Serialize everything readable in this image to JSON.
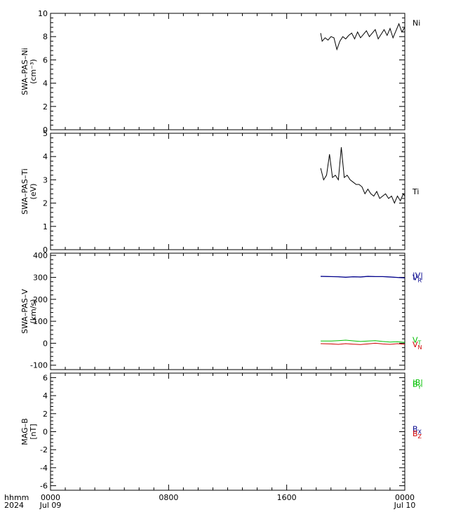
{
  "colors": {
    "black": "#000000",
    "blue": "#00008b",
    "green": "#00c000",
    "red": "#d00000"
  },
  "time_axis": {
    "format_label": "hhmm",
    "year_label": "2024",
    "ticks": [
      {
        "hhmm": "0000",
        "date": "Jul 09"
      },
      {
        "hhmm": "0800",
        "date": ""
      },
      {
        "hhmm": "1600",
        "date": ""
      },
      {
        "hhmm": "0000",
        "date": "Jul 10"
      }
    ]
  },
  "chart_data": [
    {
      "type": "line",
      "ylabel_line1": "SWA–PAS–Ni",
      "ylabel_line2": "(cm⁻³)",
      "ylim": [
        0,
        10
      ],
      "y_ticks": [
        0,
        2,
        4,
        6,
        8,
        10
      ],
      "x_hours_range": [
        0,
        24
      ],
      "series": [
        {
          "name": "Ni",
          "color": "#000000",
          "label_y": 9.2,
          "x": [
            18.3,
            18.4,
            18.6,
            18.8,
            19.0,
            19.2,
            19.4,
            19.6,
            19.8,
            20.0,
            20.2,
            20.4,
            20.6,
            20.8,
            21.0,
            21.2,
            21.4,
            21.6,
            21.8,
            22.0,
            22.2,
            22.4,
            22.6,
            22.8,
            23.0,
            23.2,
            23.4,
            23.6,
            23.8,
            24.0
          ],
          "values": [
            8.3,
            7.6,
            7.9,
            7.7,
            8.0,
            7.9,
            6.9,
            7.6,
            8.0,
            7.8,
            8.1,
            8.3,
            7.8,
            8.4,
            7.9,
            8.2,
            8.5,
            8.0,
            8.3,
            8.6,
            7.8,
            8.2,
            8.6,
            8.1,
            8.7,
            7.9,
            8.5,
            9.1,
            8.4,
            8.8
          ]
        }
      ]
    },
    {
      "type": "line",
      "ylabel_line1": "SWA–PAS–Ti",
      "ylabel_line2": "(eV)",
      "ylim": [
        0,
        5
      ],
      "y_ticks": [
        0,
        1,
        2,
        3,
        4,
        5
      ],
      "x_hours_range": [
        0,
        24
      ],
      "series": [
        {
          "name": "Ti",
          "color": "#000000",
          "label_y": 2.5,
          "x": [
            18.3,
            18.5,
            18.7,
            18.9,
            19.1,
            19.3,
            19.5,
            19.7,
            19.9,
            20.1,
            20.3,
            20.5,
            20.7,
            20.9,
            21.1,
            21.3,
            21.5,
            21.7,
            21.9,
            22.1,
            22.3,
            22.5,
            22.7,
            22.9,
            23.1,
            23.3,
            23.5,
            23.7,
            23.9,
            24.0
          ],
          "values": [
            3.5,
            3.0,
            3.2,
            4.1,
            3.1,
            3.2,
            3.0,
            4.4,
            3.1,
            3.2,
            3.0,
            2.9,
            2.8,
            2.8,
            2.7,
            2.4,
            2.6,
            2.4,
            2.3,
            2.5,
            2.2,
            2.3,
            2.4,
            2.2,
            2.3,
            2.0,
            2.3,
            2.1,
            2.4,
            2.3
          ]
        }
      ]
    },
    {
      "type": "line",
      "ylabel_line1": "SWA–PAS–V",
      "ylabel_line2": "(km/s)",
      "ylim": [
        -120,
        410
      ],
      "y_ticks": [
        -100,
        0,
        100,
        200,
        300,
        400
      ],
      "x_hours_range": [
        0,
        24
      ],
      "series": [
        {
          "name": "|V|",
          "color": "#00008b",
          "label_y": 310,
          "x": [
            18.3,
            19.0,
            19.5,
            20.0,
            20.5,
            21.0,
            21.5,
            22.0,
            22.5,
            23.0,
            23.5,
            24.0
          ],
          "values": [
            305,
            304,
            303,
            301,
            303,
            302,
            305,
            304,
            304,
            302,
            300,
            298
          ]
        },
        {
          "name": "V_R",
          "color": "#00008b",
          "label_y": 300,
          "x": [
            18.3,
            19.0,
            19.5,
            20.0,
            20.5,
            21.0,
            21.5,
            22.0,
            22.5,
            23.0,
            23.5,
            24.0
          ],
          "values": [
            304,
            303,
            302,
            300,
            302,
            301,
            304,
            303,
            303,
            301,
            299,
            297
          ]
        },
        {
          "name": "V_T",
          "color": "#00c000",
          "label_y": 15,
          "x": [
            18.3,
            19.0,
            19.5,
            20.0,
            20.5,
            21.0,
            21.5,
            22.0,
            22.5,
            23.0,
            23.5,
            24.0
          ],
          "values": [
            10,
            10,
            12,
            14,
            11,
            8,
            10,
            12,
            8,
            5,
            7,
            4
          ]
        },
        {
          "name": "V_N",
          "color": "#d00000",
          "label_y": -5,
          "x": [
            18.3,
            19.0,
            19.5,
            20.0,
            20.5,
            21.0,
            21.5,
            22.0,
            22.5,
            23.0,
            23.5,
            24.0
          ],
          "values": [
            -2,
            -3,
            -5,
            -2,
            -4,
            -6,
            -3,
            0,
            -3,
            -5,
            -2,
            -5
          ]
        }
      ]
    },
    {
      "type": "line",
      "ylabel_line1": "MAG–B",
      "ylabel_line2": "[nT]",
      "ylim": [
        -6.5,
        6.5
      ],
      "y_ticks": [
        -6,
        -4,
        -2,
        0,
        2,
        4,
        6
      ],
      "x_hours_range": [
        0,
        24
      ],
      "series": [
        {
          "name": "|B|",
          "color": "#00c000",
          "label_y": 5.5,
          "x": [],
          "values": []
        },
        {
          "name": "B_Y",
          "color": "#00c000",
          "label_y": 5.3,
          "x": [],
          "values": []
        },
        {
          "name": "B_X",
          "color": "#00008b",
          "label_y": 0.3,
          "x": [],
          "values": []
        },
        {
          "name": "B_Z",
          "color": "#d00000",
          "label_y": -0.2,
          "x": [],
          "values": []
        }
      ]
    }
  ]
}
